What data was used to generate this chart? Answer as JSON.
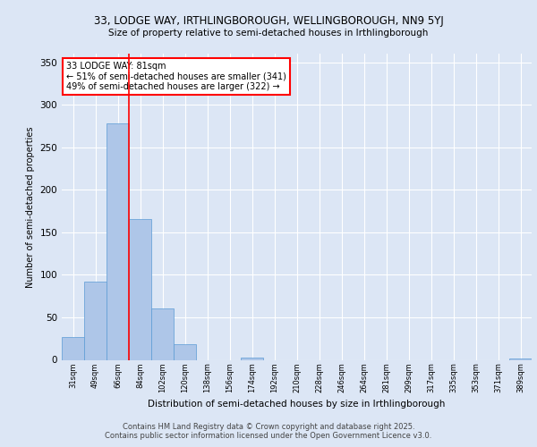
{
  "title_line1": "33, LODGE WAY, IRTHLINGBOROUGH, WELLINGBOROUGH, NN9 5YJ",
  "title_line2": "Size of property relative to semi-detached houses in Irthlingborough",
  "xlabel": "Distribution of semi-detached houses by size in Irthlingborough",
  "ylabel": "Number of semi-detached properties",
  "categories": [
    "31sqm",
    "49sqm",
    "66sqm",
    "84sqm",
    "102sqm",
    "120sqm",
    "138sqm",
    "156sqm",
    "174sqm",
    "192sqm",
    "210sqm",
    "228sqm",
    "246sqm",
    "264sqm",
    "281sqm",
    "299sqm",
    "317sqm",
    "335sqm",
    "353sqm",
    "371sqm",
    "389sqm"
  ],
  "values": [
    27,
    92,
    278,
    166,
    60,
    18,
    0,
    0,
    3,
    0,
    0,
    0,
    0,
    0,
    0,
    0,
    0,
    0,
    0,
    0,
    2
  ],
  "bar_color": "#aec6e8",
  "bar_edge_color": "#5b9bd5",
  "vline_x": 2.5,
  "vline_color": "#ff0000",
  "annotation_title": "33 LODGE WAY: 81sqm",
  "annotation_line1": "← 51% of semi-detached houses are smaller (341)",
  "annotation_line2": "49% of semi-detached houses are larger (322) →",
  "annotation_box_color": "#ff0000",
  "background_color": "#dce6f5",
  "grid_color": "#ffffff",
  "ylim": [
    0,
    360
  ],
  "yticks": [
    0,
    50,
    100,
    150,
    200,
    250,
    300,
    350
  ],
  "footer_line1": "Contains HM Land Registry data © Crown copyright and database right 2025.",
  "footer_line2": "Contains public sector information licensed under the Open Government Licence v3.0."
}
